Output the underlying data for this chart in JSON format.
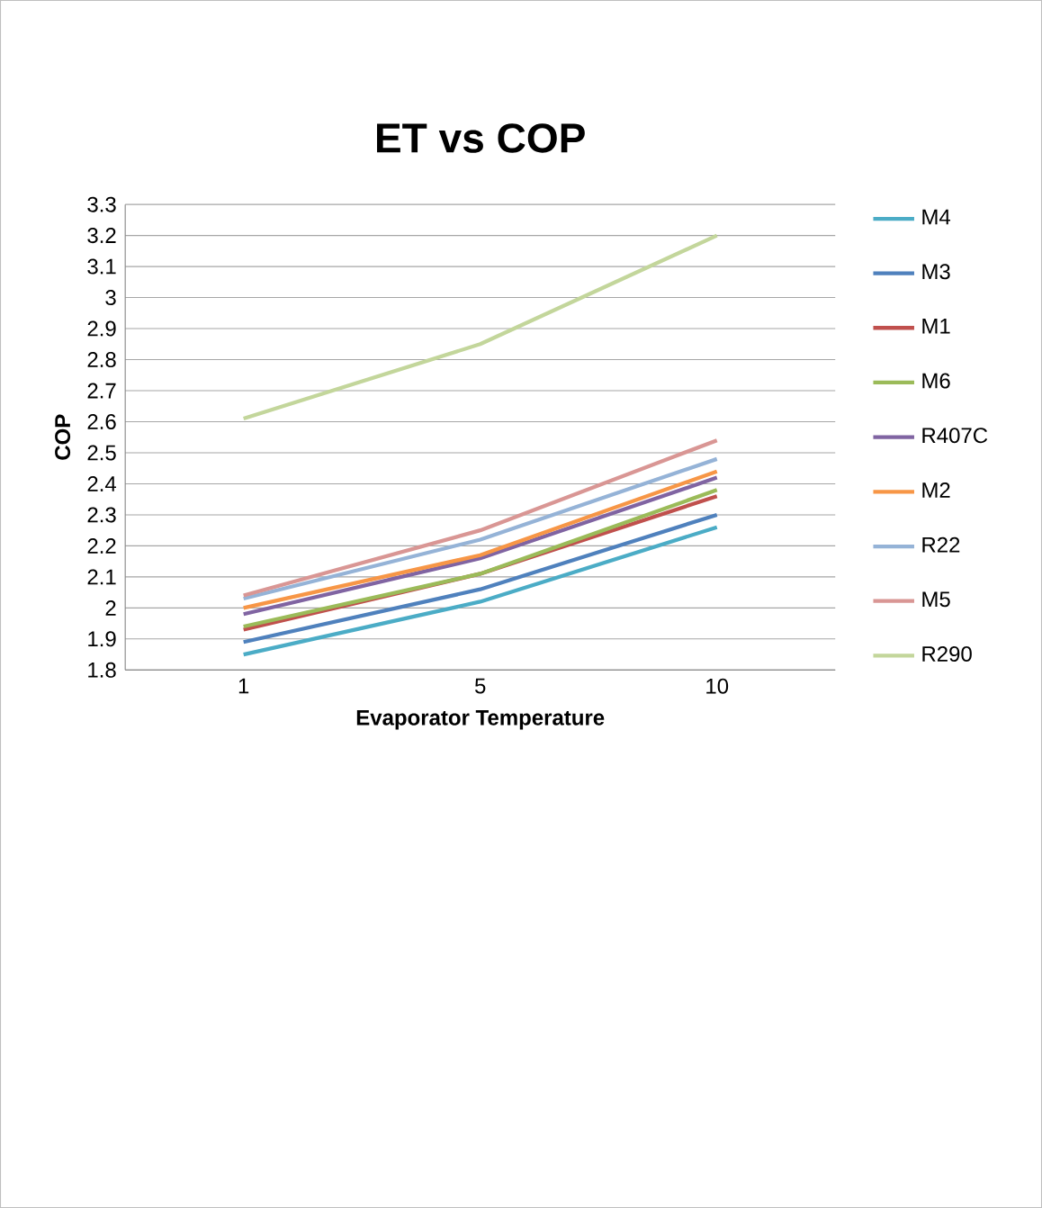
{
  "chart_data": {
    "type": "line",
    "title": "ET vs COP",
    "xlabel": "Evaporator Temperature",
    "ylabel": "COP",
    "categories": [
      "1",
      "5",
      "10"
    ],
    "series": [
      {
        "name": "M4",
        "color": "#4bacc6",
        "values": [
          1.85,
          2.02,
          2.26
        ]
      },
      {
        "name": "M3",
        "color": "#4f81bd",
        "values": [
          1.89,
          2.06,
          2.3
        ]
      },
      {
        "name": "M1",
        "color": "#c0504d",
        "values": [
          1.93,
          2.11,
          2.36
        ]
      },
      {
        "name": "M6",
        "color": "#9bbb59",
        "values": [
          1.94,
          2.11,
          2.38
        ]
      },
      {
        "name": "R407C",
        "color": "#8064a2",
        "values": [
          1.98,
          2.16,
          2.42
        ]
      },
      {
        "name": "M2",
        "color": "#f79646",
        "values": [
          2.0,
          2.17,
          2.44
        ]
      },
      {
        "name": "R22",
        "color": "#95b3d7",
        "values": [
          2.03,
          2.22,
          2.48
        ]
      },
      {
        "name": "M5",
        "color": "#d99694",
        "values": [
          2.04,
          2.25,
          2.54
        ]
      },
      {
        "name": "R290",
        "color": "#c3d69b",
        "values": [
          2.61,
          2.85,
          3.2
        ]
      }
    ],
    "ylim": [
      1.8,
      3.3
    ],
    "yticks": [
      1.8,
      1.9,
      2,
      2.1,
      2.2,
      2.3,
      2.4,
      2.5,
      2.6,
      2.7,
      2.8,
      2.9,
      3,
      3.1,
      3.2,
      3.3
    ],
    "grid": "y",
    "legend": "right",
    "marker": "none",
    "line_style": "solid"
  }
}
